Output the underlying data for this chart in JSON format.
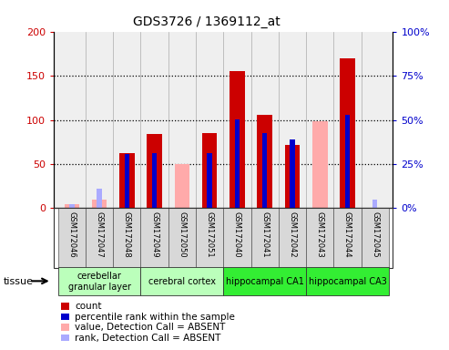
{
  "title": "GDS3726 / 1369112_at",
  "samples": [
    "GSM172046",
    "GSM172047",
    "GSM172048",
    "GSM172049",
    "GSM172050",
    "GSM172051",
    "GSM172040",
    "GSM172041",
    "GSM172042",
    "GSM172043",
    "GSM172044",
    "GSM172045"
  ],
  "count_present": [
    0,
    0,
    62,
    84,
    0,
    85,
    155,
    106,
    72,
    0,
    170,
    0
  ],
  "rank_present_pct": [
    0,
    0,
    30.5,
    31,
    0,
    31,
    50.5,
    42.5,
    39,
    0,
    53,
    0
  ],
  "value_absent": [
    5,
    10,
    0,
    0,
    50,
    0,
    0,
    0,
    0,
    98,
    0,
    0
  ],
  "rank_absent_pct": [
    2.5,
    11,
    0,
    0,
    0,
    0,
    0,
    0,
    0,
    0,
    0,
    5
  ],
  "tissue_groups": [
    {
      "label": "cerebellar\ngranular layer",
      "start": 0,
      "end": 3,
      "color": "#bbffbb"
    },
    {
      "label": "cerebral cortex",
      "start": 3,
      "end": 6,
      "color": "#bbffbb"
    },
    {
      "label": "hippocampal CA1",
      "start": 6,
      "end": 9,
      "color": "#33ee33"
    },
    {
      "label": "hippocampal CA3",
      "start": 9,
      "end": 12,
      "color": "#33ee33"
    }
  ],
  "color_count": "#cc0000",
  "color_rank": "#0000cc",
  "color_value_absent": "#ffaaaa",
  "color_rank_absent": "#aaaaff",
  "ylim_left": [
    0,
    200
  ],
  "ylim_right": [
    0,
    100
  ],
  "yticks_left": [
    0,
    50,
    100,
    150,
    200
  ],
  "yticks_right": [
    0,
    25,
    50,
    75,
    100
  ],
  "ytick_labels_right": [
    "0%",
    "25%",
    "50%",
    "75%",
    "100%"
  ],
  "legend_items": [
    {
      "label": "count",
      "color": "#cc0000"
    },
    {
      "label": "percentile rank within the sample",
      "color": "#0000cc"
    },
    {
      "label": "value, Detection Call = ABSENT",
      "color": "#ffaaaa"
    },
    {
      "label": "rank, Detection Call = ABSENT",
      "color": "#aaaaff"
    }
  ],
  "tissue_label": "tissue",
  "grid_dotted_at": [
    50,
    100,
    150
  ]
}
